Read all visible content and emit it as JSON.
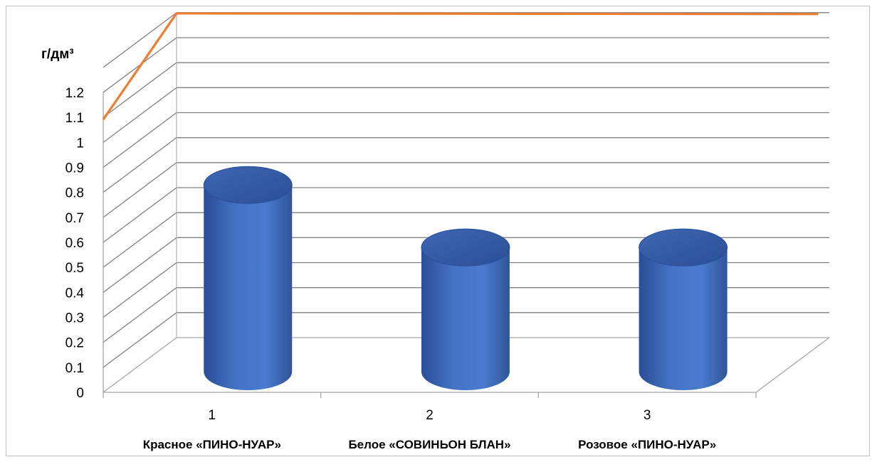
{
  "chart_data": {
    "type": "bar",
    "style": "3d-cylinder",
    "ylabel": "г/дм³",
    "ylim": [
      0,
      1.2
    ],
    "yticks": [
      "0",
      "0.1",
      "0.2",
      "0.3",
      "0.4",
      "0.5",
      "0.6",
      "0.7",
      "0.8",
      "0.9",
      "1",
      "1.1",
      "1.2"
    ],
    "categories": [
      {
        "number": "1",
        "name": "Красное «ПИНО-НУАР»"
      },
      {
        "number": "2",
        "name": "Белое  «СОВИНЬОН БЛАН»"
      },
      {
        "number": "3",
        "name": "Розовое «ПИНО-НУАР»"
      }
    ],
    "series": [
      {
        "type": "bar",
        "values": [
          0.77,
          0.52,
          0.52
        ],
        "color": "#4472c4"
      },
      {
        "type": "line",
        "values": [
          1.2,
          1.2,
          1.2
        ],
        "color": "#ed7d31"
      }
    ],
    "grid": true,
    "legend": "none"
  }
}
